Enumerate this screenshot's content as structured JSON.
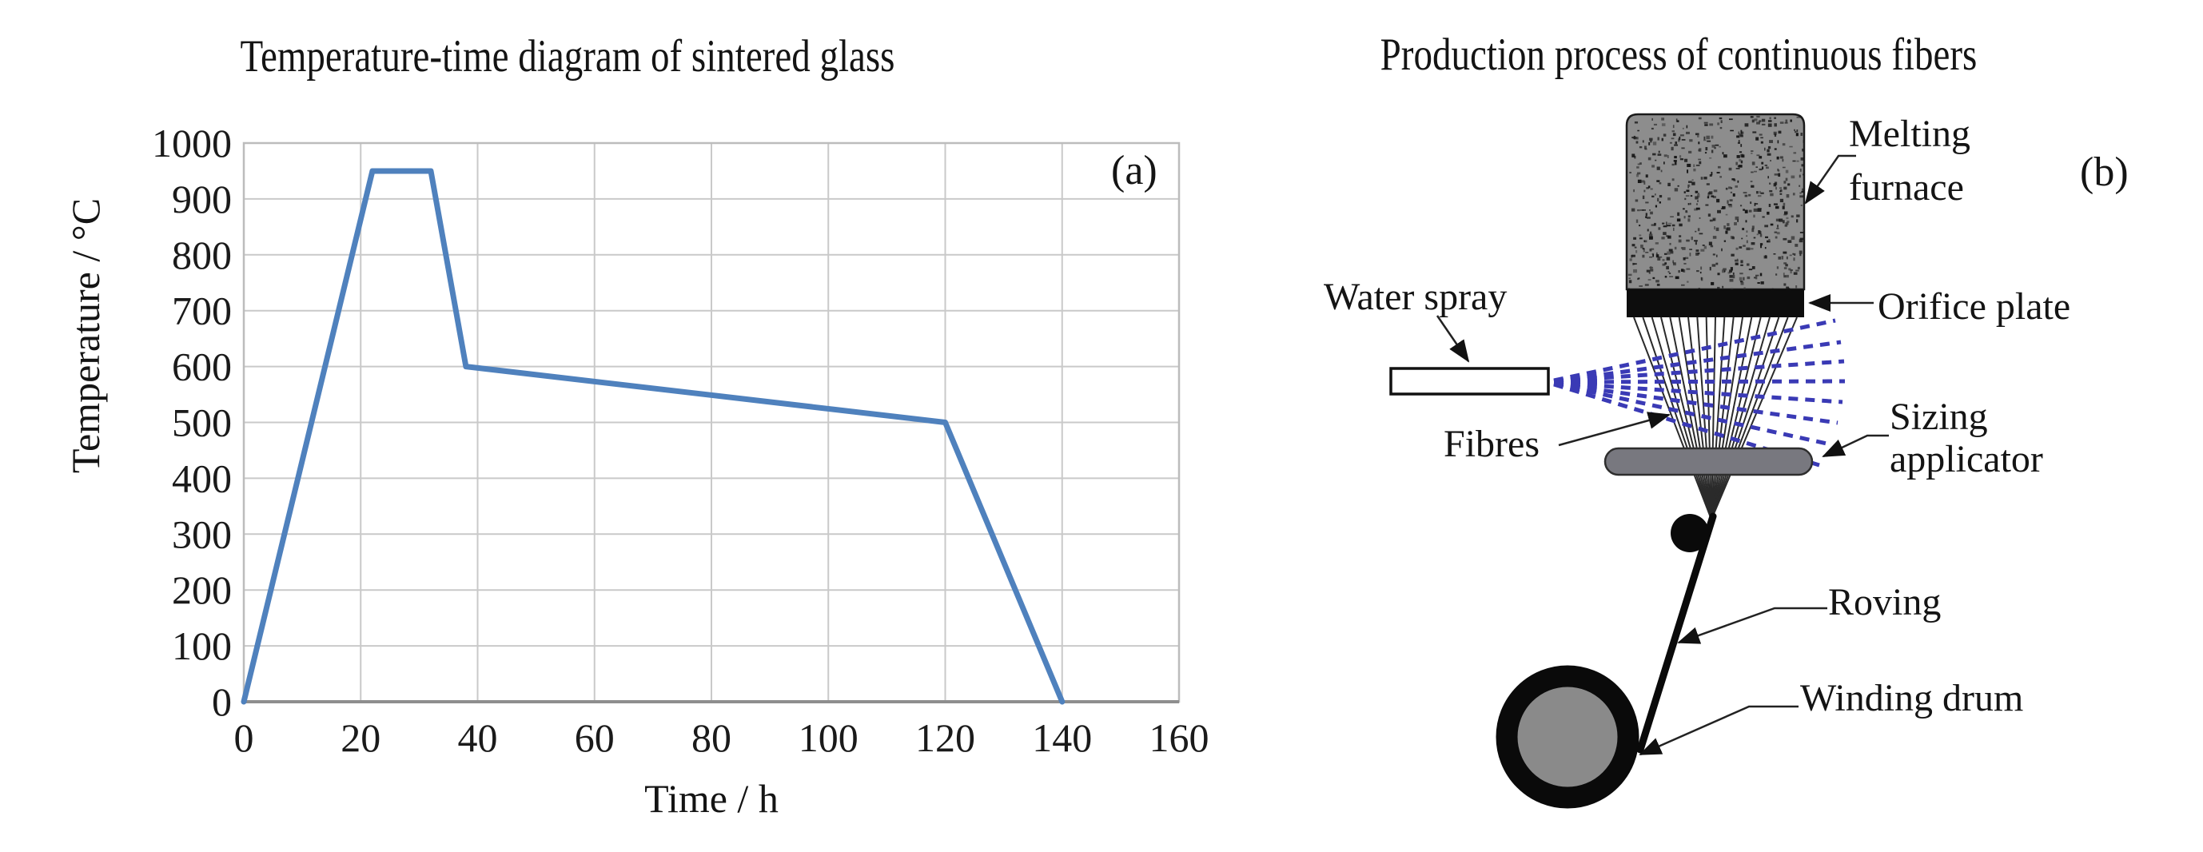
{
  "panel_a": {
    "marker": "(a)",
    "chart_data": {
      "type": "line",
      "title": "Temperature-time diagram of sintered glass",
      "xlabel": "Time / h",
      "ylabel": "Temperature / °C",
      "xlim": [
        0,
        160
      ],
      "ylim": [
        0,
        1000
      ],
      "x_ticks": [
        0,
        20,
        40,
        60,
        80,
        100,
        120,
        140,
        160
      ],
      "y_ticks": [
        0,
        100,
        200,
        300,
        400,
        500,
        600,
        700,
        800,
        900,
        1000
      ],
      "x_grid_step": 20,
      "y_grid_step": 100,
      "grid": true,
      "legend_position": "none",
      "line_color": "#4f81bd",
      "series": [
        {
          "points": [
            [
              0,
              0
            ],
            [
              22,
              950
            ],
            [
              32,
              950
            ],
            [
              38,
              600
            ],
            [
              120,
              500
            ],
            [
              140,
              0
            ]
          ]
        }
      ]
    }
  },
  "panel_b": {
    "title": "Production process of continuous fibers",
    "marker": "(b)",
    "labels": {
      "melting_furnace": {
        "line1": "Melting",
        "line2": "furnace"
      },
      "orifice_plate": "Orifice plate",
      "water_spray": "Water spray",
      "fibres": "Fibres",
      "sizing_applicator": {
        "line1": "Sizing",
        "line2": "applicator"
      },
      "roving": "Roving",
      "winding_drum": "Winding drum"
    },
    "colors": {
      "furnace_fill": "#8d8d8d",
      "orifice_fill": "#0d0d0d",
      "spray_blue": "#3a3ab5",
      "applicator_fill": "#78787f",
      "drum_fill": "#8a8a8a",
      "ink": "#111111"
    }
  }
}
